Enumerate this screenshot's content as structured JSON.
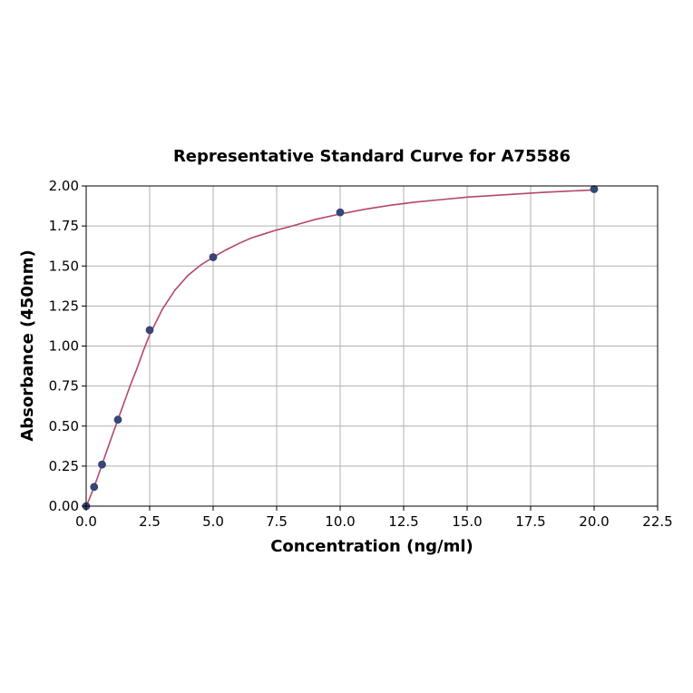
{
  "chart_data": {
    "type": "scatter",
    "title": "Representative Standard Curve for A75586",
    "xlabel": "Concentration (ng/ml)",
    "ylabel": "Absorbance (450nm)",
    "xlim": [
      0,
      22.5
    ],
    "ylim": [
      0,
      2.0
    ],
    "xticks": [
      "0.0",
      "2.5",
      "5.0",
      "7.5",
      "10.0",
      "12.5",
      "15.0",
      "17.5",
      "20.0",
      "22.5"
    ],
    "yticks": [
      "0.00",
      "0.25",
      "0.50",
      "0.75",
      "1.00",
      "1.25",
      "1.50",
      "1.75",
      "2.00"
    ],
    "grid": true,
    "colors": {
      "curve": "#b5476b",
      "points": "#2f4a7a"
    },
    "series": [
      {
        "x": [
          0,
          0.313,
          0.625,
          1.25,
          2.5,
          5,
          10,
          20
        ],
        "y": [
          0.0,
          0.12,
          0.26,
          0.54,
          1.1,
          1.555,
          1.835,
          1.98
        ]
      }
    ],
    "fit_curve": {
      "x": [
        0,
        0.1,
        0.2,
        0.313,
        0.45,
        0.625,
        0.8,
        1.0,
        1.25,
        1.5,
        1.75,
        2.0,
        2.25,
        2.5,
        2.75,
        3.0,
        3.5,
        4.0,
        4.5,
        5.0,
        5.5,
        6.0,
        6.5,
        7.0,
        7.5,
        8.0,
        9.0,
        10.0,
        11.0,
        12.0,
        13.0,
        14.0,
        15.0,
        16.0,
        17.0,
        18.0,
        19.0,
        20.0
      ],
      "y": [
        0.0,
        0.035,
        0.075,
        0.12,
        0.18,
        0.26,
        0.34,
        0.43,
        0.54,
        0.65,
        0.76,
        0.86,
        0.97,
        1.07,
        1.15,
        1.23,
        1.35,
        1.44,
        1.505,
        1.555,
        1.6,
        1.64,
        1.675,
        1.7,
        1.725,
        1.745,
        1.79,
        1.825,
        1.855,
        1.88,
        1.9,
        1.915,
        1.93,
        1.94,
        1.95,
        1.96,
        1.968,
        1.975
      ]
    }
  }
}
